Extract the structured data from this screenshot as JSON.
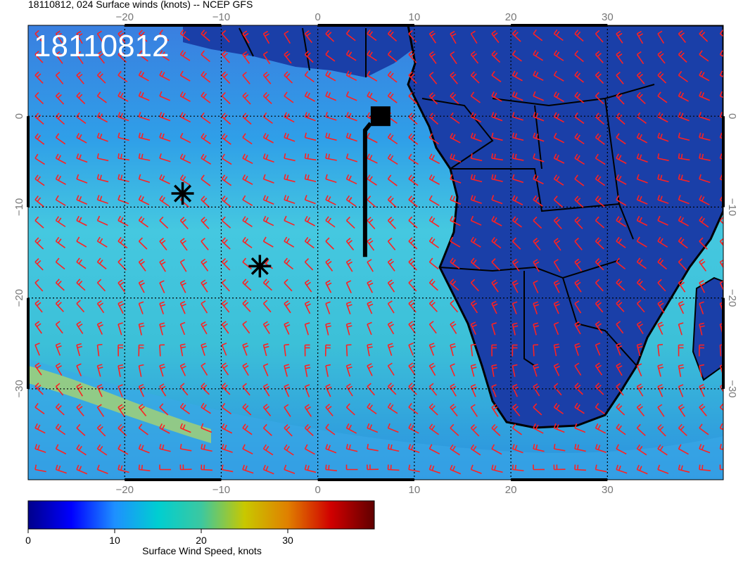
{
  "title": "18110812, 024 Surface winds (knots) -- NCEP GFS",
  "date_stamp": "18110812",
  "map": {
    "lon_range": [
      -30,
      42
    ],
    "lat_range": [
      -40,
      10
    ],
    "lon_ticks": [
      -20,
      -10,
      0,
      10,
      20,
      30
    ],
    "lat_ticks": [
      0,
      -10,
      -20,
      -30
    ],
    "gridlines": true,
    "land_color": "#1a3fa8",
    "ocean_color_mid": "#3fbfd0",
    "barb_color": "#ff2020",
    "markers": [
      {
        "type": "asterisk",
        "lon": -14,
        "lat": -8.5
      },
      {
        "type": "asterisk",
        "lon": -6,
        "lat": -16.5
      },
      {
        "type": "square",
        "lon": 6.5,
        "lat": 0
      }
    ]
  },
  "colorbar": {
    "label": "Surface Wind Speed, knots",
    "ticks": [
      0,
      10,
      20,
      30
    ],
    "range": [
      0,
      40
    ],
    "colors": [
      "#00008b",
      "#0000ff",
      "#1e90ff",
      "#00ced1",
      "#3cc8a0",
      "#c8c800",
      "#e08000",
      "#d00000",
      "#600000"
    ]
  }
}
